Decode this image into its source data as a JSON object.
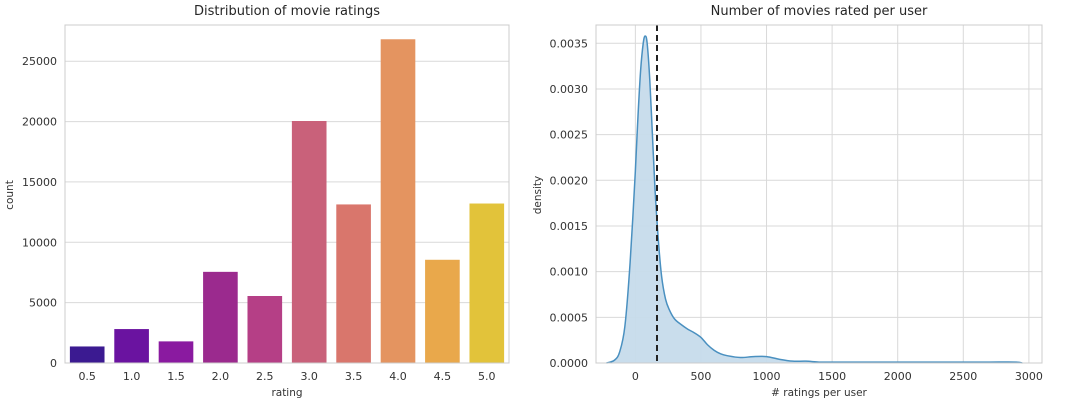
{
  "chart_data": [
    {
      "type": "bar",
      "title": "Distribution of movie ratings",
      "xlabel": "rating",
      "ylabel": "count",
      "categories": [
        "0.5",
        "1.0",
        "1.5",
        "2.0",
        "2.5",
        "3.0",
        "3.5",
        "4.0",
        "4.5",
        "5.0"
      ],
      "values": [
        1370,
        2811,
        1791,
        7551,
        5550,
        20047,
        13136,
        26818,
        8551,
        13211
      ],
      "colors": [
        "#3b1a91",
        "#6a13a0",
        "#8a1aa0",
        "#9b2a8e",
        "#b53f86",
        "#c9617a",
        "#d9766c",
        "#e49460",
        "#e9a84b",
        "#e2c33a"
      ],
      "ylim": [
        0,
        28000
      ],
      "yticks": [
        0,
        5000,
        10000,
        15000,
        20000,
        25000
      ],
      "ytick_labels": [
        "0",
        "5000",
        "10000",
        "15000",
        "20000",
        "25000"
      ],
      "grid": "horizontal"
    },
    {
      "type": "area",
      "title": "Number of movies rated per user",
      "xlabel": "# ratings per user",
      "ylabel": "density",
      "x": [
        -220,
        -160,
        -120,
        -80,
        -40,
        0,
        20,
        40,
        60,
        75,
        90,
        110,
        130,
        150,
        175,
        200,
        230,
        260,
        300,
        350,
        400,
        450,
        500,
        550,
        600,
        650,
        700,
        800,
        900,
        1000,
        1100,
        1200,
        1300,
        1400,
        1500,
        1700,
        1900,
        2100,
        2300,
        2500,
        2700,
        2900,
        2950
      ],
      "y": [
        0.0,
        3e-05,
        0.00012,
        0.0004,
        0.0011,
        0.0021,
        0.0027,
        0.0032,
        0.0035,
        0.00358,
        0.0035,
        0.0031,
        0.0025,
        0.0019,
        0.00135,
        0.00095,
        0.0007,
        0.00058,
        0.00048,
        0.00042,
        0.00037,
        0.00033,
        0.00028,
        0.0002,
        0.00014,
        0.0001,
        8e-05,
        6e-05,
        7e-05,
        7e-05,
        4e-05,
        2e-05,
        2e-05,
        1e-05,
        1e-05,
        1e-05,
        1e-05,
        1e-05,
        1e-05,
        1e-05,
        1e-05,
        1e-05,
        0.0
      ],
      "mean_line_x": 165,
      "xlim": [
        -300,
        3100
      ],
      "ylim": [
        0,
        0.0037
      ],
      "xticks": [
        0,
        500,
        1000,
        1500,
        2000,
        2500,
        3000
      ],
      "xtick_labels": [
        "0",
        "500",
        "1000",
        "1500",
        "2000",
        "2500",
        "3000"
      ],
      "yticks": [
        0,
        0.0005,
        0.001,
        0.0015,
        0.002,
        0.0025,
        0.003,
        0.0035
      ],
      "ytick_labels": [
        "0.0000",
        "0.0005",
        "0.0010",
        "0.0015",
        "0.0020",
        "0.0025",
        "0.0030",
        "0.0035"
      ],
      "fill_color": "#c6dbeb",
      "line_color": "#4a90c0",
      "grid": "both"
    }
  ]
}
